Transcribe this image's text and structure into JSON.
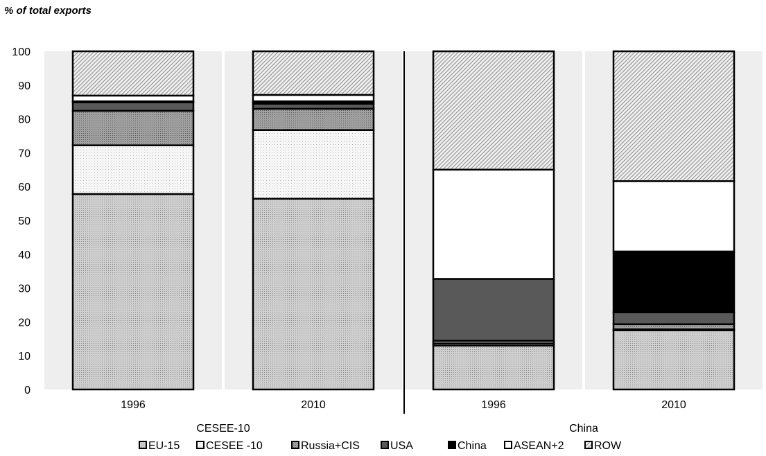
{
  "chart_data": {
    "type": "bar",
    "stacked": true,
    "ylabel": "% of total exports",
    "ylim": [
      0,
      100
    ],
    "yticks": [
      0,
      10,
      20,
      30,
      40,
      50,
      60,
      70,
      80,
      90,
      100
    ],
    "grid": false,
    "legend_position": "bottom",
    "groups": [
      {
        "name": "CESEE-10",
        "categories": [
          "1996",
          "2010"
        ]
      },
      {
        "name": "China",
        "categories": [
          "1996",
          "2010"
        ]
      }
    ],
    "categories": [
      "1996",
      "2010",
      "1996",
      "2010"
    ],
    "series": [
      {
        "name": "EU-15",
        "pattern": "dots",
        "color": "#d0d0d0",
        "values": [
          57.8,
          56.4,
          13.0,
          17.5
        ]
      },
      {
        "name": "CESEE -10",
        "pattern": "fine-dots",
        "color": "#f4f4f4",
        "values": [
          14.4,
          20.3,
          0.6,
          0.3
        ]
      },
      {
        "name": "Russia+CIS",
        "pattern": "dark-dots",
        "color": "#a6a6a6",
        "values": [
          10.2,
          6.3,
          0.8,
          1.5
        ]
      },
      {
        "name": "USA",
        "pattern": "solid",
        "color": "#595959",
        "values": [
          2.5,
          1.5,
          18.3,
          3.5
        ]
      },
      {
        "name": "China",
        "pattern": "solid",
        "color": "#000000",
        "values": [
          0.3,
          0.7,
          0.0,
          18.0
        ]
      },
      {
        "name": "ASEAN+2",
        "pattern": "none",
        "color": "#ffffff",
        "values": [
          1.7,
          1.9,
          32.3,
          20.8
        ]
      },
      {
        "name": "ROW",
        "pattern": "diagonal",
        "color": "#e0e0e0",
        "values": [
          13.1,
          12.9,
          35.0,
          38.4
        ]
      }
    ]
  }
}
